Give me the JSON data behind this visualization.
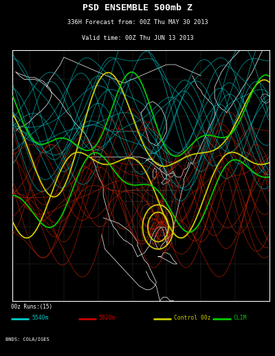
{
  "title_line1": "PSD ENSEMBLE 500mb Z",
  "title_line2": "336H Forecast from: 00Z Thu MAY 30 2013",
  "title_line3": "Valid time: 00Z Thu JUN 13 2013",
  "background_color": "#000000",
  "text_color": "#ffffff",
  "legend_label_runs": "00z Runs:(15)",
  "legend_items": [
    {
      "label": "5540m",
      "color": "#00cccc"
    },
    {
      "label": "5820m",
      "color": "#cc0000"
    },
    {
      "label": "Control 00z",
      "color": "#cccc00"
    },
    {
      "label": "CLIM",
      "color": "#00cc00"
    }
  ],
  "credit": "BNDS: COLA/IGES",
  "map_border_color": "#ffffff",
  "coast_color": "#ffffff",
  "grid_color": "#888888",
  "cyan_color": "#00cccc",
  "red_color": "#cc2200",
  "yellow_color": "#cccc00",
  "green_color": "#00cc00"
}
